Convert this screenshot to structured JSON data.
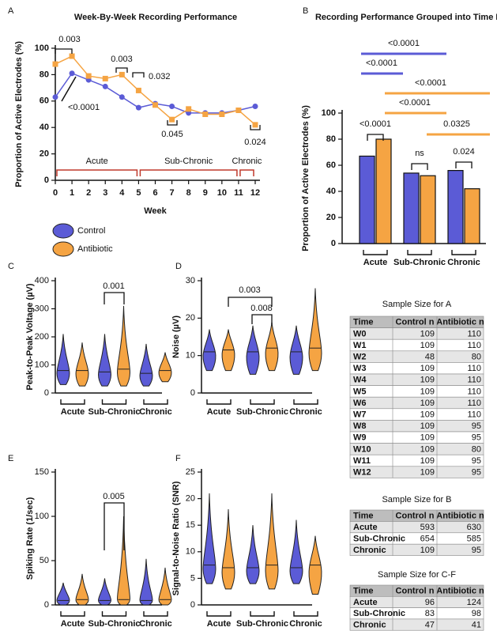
{
  "chart_data": [
    {
      "panel": "A",
      "type": "line",
      "title": "Week-By-Week Recording Performance",
      "x_label": "Week",
      "y_label": "Proportion of Active Electrodes (%)",
      "x": [
        0,
        1,
        2,
        3,
        4,
        5,
        6,
        7,
        8,
        9,
        10,
        11,
        12
      ],
      "xlim": [
        0,
        12
      ],
      "xticks": [
        0,
        1,
        2,
        3,
        4,
        5,
        6,
        7,
        8,
        9,
        10,
        11,
        12
      ],
      "ylim": [
        0,
        100
      ],
      "yticks": [
        0,
        20,
        40,
        60,
        80,
        100
      ],
      "series": [
        {
          "name": "Control",
          "color": "#5b5bd6",
          "values": [
            63,
            81,
            76,
            71,
            63,
            55,
            58,
            56,
            51,
            51,
            51,
            53,
            56
          ]
        },
        {
          "name": "Antibiotic",
          "color": "#f5a443",
          "values": [
            88,
            94,
            79,
            77,
            80,
            68,
            57,
            46,
            54,
            50,
            50,
            53,
            42
          ]
        }
      ],
      "phases": [
        {
          "label": "Acute",
          "range": [
            0,
            5
          ]
        },
        {
          "label": "Sub-Chronic",
          "range": [
            5,
            11
          ]
        },
        {
          "label": "Chronic",
          "range": [
            11,
            12
          ]
        }
      ],
      "annotations": [
        "0.003",
        "<0.0001",
        "0.003",
        "0.032",
        "0.045",
        "0.024"
      ]
    },
    {
      "panel": "B",
      "type": "bar",
      "title": "Recording Performance Grouped into Time Points",
      "y_label": "Proportion of Active Electrodes (%)",
      "categories": [
        "Acute",
        "Sub-Chronic",
        "Chronic"
      ],
      "ylim": [
        0,
        100
      ],
      "yticks": [
        0,
        20,
        40,
        60,
        80,
        100
      ],
      "series": [
        {
          "color": "#5b5bd6",
          "values": [
            67,
            54,
            56
          ]
        },
        {
          "color": "#f5a443",
          "values": [
            80,
            52,
            42
          ]
        }
      ],
      "annotations": [
        "<0.0001",
        "<0.0001",
        "<0.0001",
        "<0.0001",
        "0.0325",
        "<0.0001",
        "ns",
        "0.024"
      ]
    },
    {
      "panel": "C",
      "type": "violin",
      "y_label": "Peak-to-Peak Voltage (µV)",
      "categories": [
        "Acute",
        "Sub-Chronic",
        "Chronic"
      ],
      "ylim": [
        0,
        400
      ],
      "yticks": [
        0,
        100,
        200,
        300,
        400
      ],
      "series": [
        {
          "color": "#5b5bd6",
          "medians": [
            80,
            75,
            70
          ],
          "ranges": [
            [
              30,
              210
            ],
            [
              25,
              210
            ],
            [
              25,
              175
            ]
          ]
        },
        {
          "color": "#f5a443",
          "medians": [
            80,
            85,
            80
          ],
          "ranges": [
            [
              25,
              180
            ],
            [
              25,
              310
            ],
            [
              40,
              145
            ]
          ]
        }
      ],
      "annotations": [
        "0.001"
      ]
    },
    {
      "panel": "D",
      "type": "violin",
      "y_label": "Noise (µV)",
      "categories": [
        "Acute",
        "Sub-Chronic",
        "Chronic"
      ],
      "ylim": [
        0,
        30
      ],
      "yticks": [
        0,
        10,
        20,
        30
      ],
      "series": [
        {
          "color": "#5b5bd6",
          "medians": [
            11,
            11,
            11
          ],
          "ranges": [
            [
              6,
              17
            ],
            [
              5,
              18
            ],
            [
              5,
              18
            ]
          ]
        },
        {
          "color": "#f5a443",
          "medians": [
            11.5,
            12,
            12
          ],
          "ranges": [
            [
              6,
              17
            ],
            [
              6,
              19
            ],
            [
              6,
              28
            ]
          ]
        }
      ],
      "annotations": [
        "0.003",
        "0.008"
      ]
    },
    {
      "panel": "E",
      "type": "violin",
      "y_label": "Spiking Rate (1/sec)",
      "categories": [
        "Acute",
        "Sub-Chronic",
        "Chronic"
      ],
      "ylim": [
        0,
        150
      ],
      "yticks": [
        0,
        50,
        100,
        150
      ],
      "series": [
        {
          "color": "#5b5bd6",
          "medians": [
            5,
            5,
            5
          ],
          "ranges": [
            [
              0,
              25
            ],
            [
              0,
              30
            ],
            [
              0,
              52
            ]
          ]
        },
        {
          "color": "#f5a443",
          "medians": [
            6,
            6,
            6
          ],
          "ranges": [
            [
              0,
              35
            ],
            [
              0,
              100
            ],
            [
              0,
              42
            ]
          ]
        }
      ],
      "annotations": [
        "0.005"
      ]
    },
    {
      "panel": "F",
      "type": "violin",
      "y_label": "Signal-to-Noise Ratio (SNR)",
      "categories": [
        "Acute",
        "Sub-Chronic",
        "Chronic"
      ],
      "ylim": [
        0,
        25
      ],
      "yticks": [
        0,
        5,
        10,
        15,
        20,
        25
      ],
      "series": [
        {
          "color": "#5b5bd6",
          "medians": [
            7.5,
            7,
            7
          ],
          "ranges": [
            [
              4,
              21
            ],
            [
              4,
              15
            ],
            [
              4,
              16
            ]
          ]
        },
        {
          "color": "#f5a443",
          "medians": [
            7,
            7.5,
            7.5
          ],
          "ranges": [
            [
              3,
              18
            ],
            [
              3,
              21
            ],
            [
              2,
              13
            ]
          ]
        }
      ],
      "annotations": []
    }
  ],
  "tables": [
    {
      "title": "Sample Size for A",
      "columns": [
        "Time",
        "Control n",
        "Antibiotic n"
      ],
      "rows": [
        [
          "W0",
          109,
          110
        ],
        [
          "W1",
          109,
          110
        ],
        [
          "W2",
          48,
          80
        ],
        [
          "W3",
          109,
          110
        ],
        [
          "W4",
          109,
          110
        ],
        [
          "W5",
          109,
          110
        ],
        [
          "W6",
          109,
          110
        ],
        [
          "W7",
          109,
          110
        ],
        [
          "W8",
          109,
          95
        ],
        [
          "W9",
          109,
          95
        ],
        [
          "W10",
          109,
          80
        ],
        [
          "W11",
          109,
          95
        ],
        [
          "W12",
          109,
          95
        ]
      ]
    },
    {
      "title": "Sample Size for B",
      "columns": [
        "Time",
        "Control n",
        "Antibiotic n"
      ],
      "rows": [
        [
          "Acute",
          593,
          630
        ],
        [
          "Sub-Chronic",
          654,
          585
        ],
        [
          "Chronic",
          109,
          95
        ]
      ]
    },
    {
      "title": "Sample Size for C-F",
      "columns": [
        "Time",
        "Control n",
        "Antibiotic n"
      ],
      "rows": [
        [
          "Acute",
          96,
          124
        ],
        [
          "Sub-Chronic",
          83,
          98
        ],
        [
          "Chronic",
          47,
          41
        ]
      ]
    }
  ]
}
